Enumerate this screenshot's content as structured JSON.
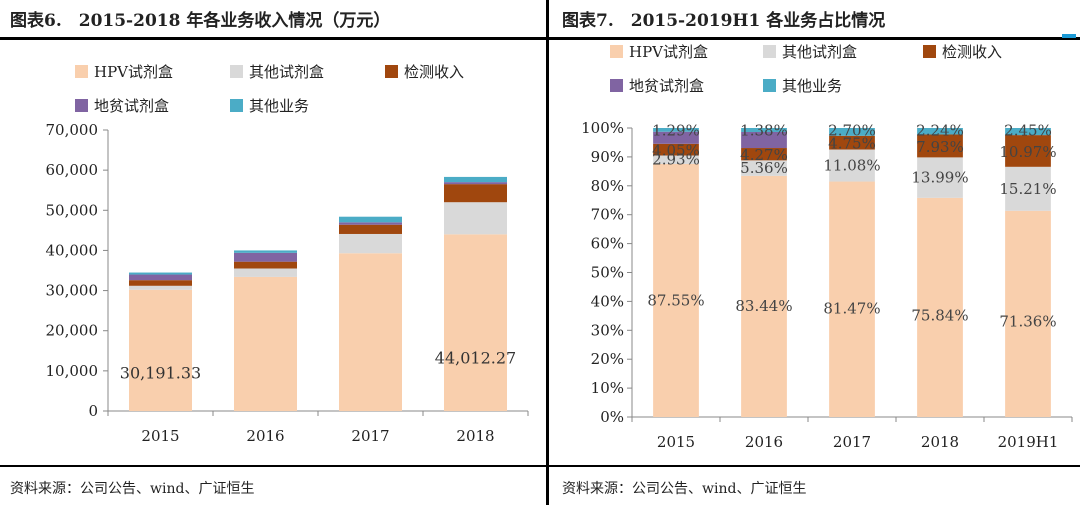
{
  "colors": {
    "hpv": "#f9cfad",
    "other_reagent": "#d9d9d9",
    "testing": "#a0470e",
    "thalassemia": "#8064a2",
    "other_business": "#4bacc6"
  },
  "left": {
    "title": "图表6.　2015-2018 年各业务收入情况（万元）",
    "source": "资料来源：公司公告、wind、广证恒生"
  },
  "right": {
    "title": "图表7.　2015-2019H1 各业务占比情况",
    "source": "资料来源：公司公告、wind、广证恒生"
  },
  "chart_data": [
    {
      "type": "bar",
      "stacked": true,
      "title": "2015-2018 年各业务收入情况（万元）",
      "categories": [
        "2015",
        "2016",
        "2017",
        "2018"
      ],
      "series": [
        {
          "name": "HPV试剂盒",
          "values": [
            30191.33,
            33400,
            39300,
            44012.27
          ]
        },
        {
          "name": "其他试剂盒",
          "values": [
            1000,
            2100,
            4800,
            8000
          ]
        },
        {
          "name": "检测收入",
          "values": [
            1400,
            1700,
            2300,
            4500
          ]
        },
        {
          "name": "地贫试剂盒",
          "values": [
            1400,
            2200,
            600,
            500
          ]
        },
        {
          "name": "其他业务",
          "values": [
            500,
            600,
            1400,
            1300
          ]
        }
      ],
      "data_labels": [
        {
          "category": "2015",
          "text": "30,191.33"
        },
        {
          "category": "2018",
          "text": "44,012.27"
        }
      ],
      "ylim": [
        0,
        70000
      ],
      "yticks": [
        "0",
        "10,000",
        "20,000",
        "30,000",
        "40,000",
        "50,000",
        "60,000",
        "70,000"
      ],
      "legend": "top",
      "grid": false
    },
    {
      "type": "bar",
      "stacked": true,
      "percent": true,
      "title": "2015-2019H1 各业务占比情况",
      "categories": [
        "2015",
        "2016",
        "2017",
        "2018",
        "2019H1"
      ],
      "series": [
        {
          "name": "HPV试剂盒",
          "values": [
            87.55,
            83.44,
            81.47,
            75.84,
            71.36
          ],
          "labels": [
            "87.55%",
            "83.44%",
            "81.47%",
            "75.84%",
            "71.36%"
          ]
        },
        {
          "name": "其他试剂盒",
          "values": [
            2.93,
            5.36,
            11.08,
            13.99,
            15.21
          ],
          "labels": [
            "2.93%",
            "5.36%",
            "11.08%",
            "13.99%",
            "15.21%"
          ]
        },
        {
          "name": "检测收入",
          "values": [
            4.05,
            4.27,
            4.75,
            7.93,
            10.97
          ],
          "labels": [
            "4.05%",
            "4.27%",
            "4.75%",
            "7.93%",
            "10.97%"
          ]
        },
        {
          "name": "地贫试剂盒",
          "values": [
            4.18,
            5.55,
            0.0,
            0.0,
            0.01
          ],
          "labels": []
        },
        {
          "name": "其他业务",
          "values": [
            1.29,
            1.38,
            2.7,
            2.24,
            2.45
          ],
          "labels": [
            "1.29%",
            "1.38%",
            "2.70%",
            "2.24%",
            "2.45%"
          ]
        }
      ],
      "ylim": [
        0,
        100
      ],
      "yticks": [
        "0%",
        "10%",
        "20%",
        "30%",
        "40%",
        "50%",
        "60%",
        "70%",
        "80%",
        "90%",
        "100%"
      ],
      "legend": "top",
      "grid": false
    }
  ]
}
